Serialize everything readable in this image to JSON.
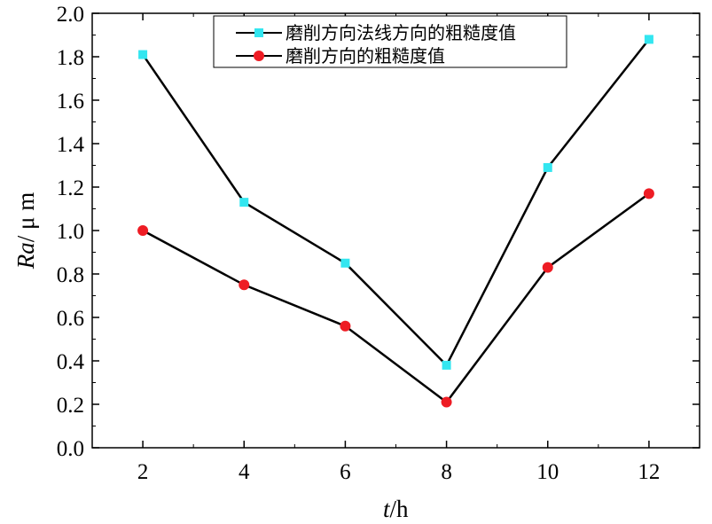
{
  "chart_data": {
    "type": "line",
    "xlabel_italic": "t",
    "xlabel_unit": "/h",
    "ylabel_italic": "Ra",
    "ylabel_unit": "/ μ m",
    "xlim": [
      1,
      13
    ],
    "ylim": [
      0.0,
      2.0
    ],
    "x_ticks": [
      2,
      4,
      6,
      8,
      10,
      12
    ],
    "y_ticks": [
      "0.0",
      "0.2",
      "0.4",
      "0.6",
      "0.8",
      "1.0",
      "1.2",
      "1.4",
      "1.6",
      "1.8",
      "2.0"
    ],
    "x": [
      2,
      4,
      6,
      8,
      10,
      12
    ],
    "series": [
      {
        "name": "磨削方向法线方向的粗糙度值",
        "values": [
          1.81,
          1.13,
          0.85,
          0.38,
          1.29,
          1.88
        ],
        "marker": "square",
        "marker_color": "#33e6f0",
        "line_color": "#000000"
      },
      {
        "name": "磨削方向的粗糙度值",
        "values": [
          1.0,
          0.75,
          0.56,
          0.21,
          0.83,
          1.17
        ],
        "marker": "circle",
        "marker_color": "#ee1c24",
        "line_color": "#000000"
      }
    ],
    "legend_position": "top-right",
    "grid": false
  }
}
